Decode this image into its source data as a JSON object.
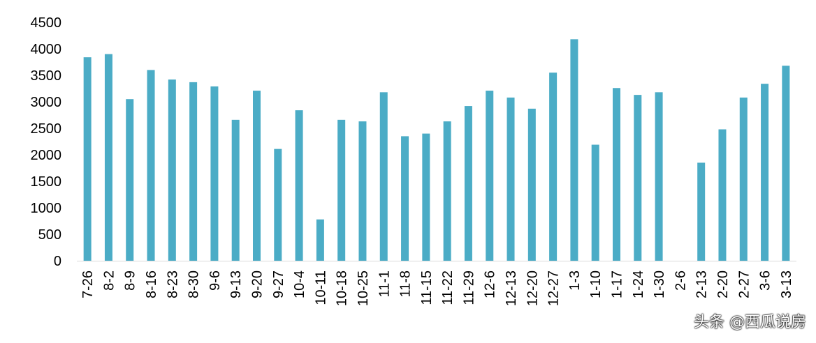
{
  "chart_data": {
    "type": "bar",
    "title": "",
    "xlabel": "",
    "ylabel": "",
    "ylim": [
      0,
      4500
    ],
    "yticks": [
      0,
      500,
      1000,
      1500,
      2000,
      2500,
      3000,
      3500,
      4000,
      4500
    ],
    "grid": false,
    "legend": "none",
    "bar_color": "#4bacc6",
    "categories": [
      "7-26",
      "8-2",
      "8-9",
      "8-16",
      "8-23",
      "8-30",
      "9-6",
      "9-13",
      "9-20",
      "9-27",
      "10-4",
      "10-11",
      "10-18",
      "10-25",
      "11-1",
      "11-8",
      "11-15",
      "11-22",
      "11-29",
      "12-6",
      "12-13",
      "12-20",
      "12-27",
      "1-3",
      "1-10",
      "1-17",
      "1-24",
      "1-30",
      "2-6",
      "2-13",
      "2-20",
      "2-27",
      "3-6",
      "3-13"
    ],
    "values": [
      3840,
      3900,
      3050,
      3600,
      3420,
      3370,
      3290,
      2660,
      3210,
      2110,
      2840,
      780,
      2660,
      2630,
      3180,
      2350,
      2400,
      2630,
      2920,
      3210,
      3080,
      2870,
      3550,
      4180,
      2190,
      3260,
      3130,
      3180,
      0,
      1850,
      2480,
      3080,
      3340,
      3680
    ]
  },
  "watermark": "头条 @西瓜说房"
}
